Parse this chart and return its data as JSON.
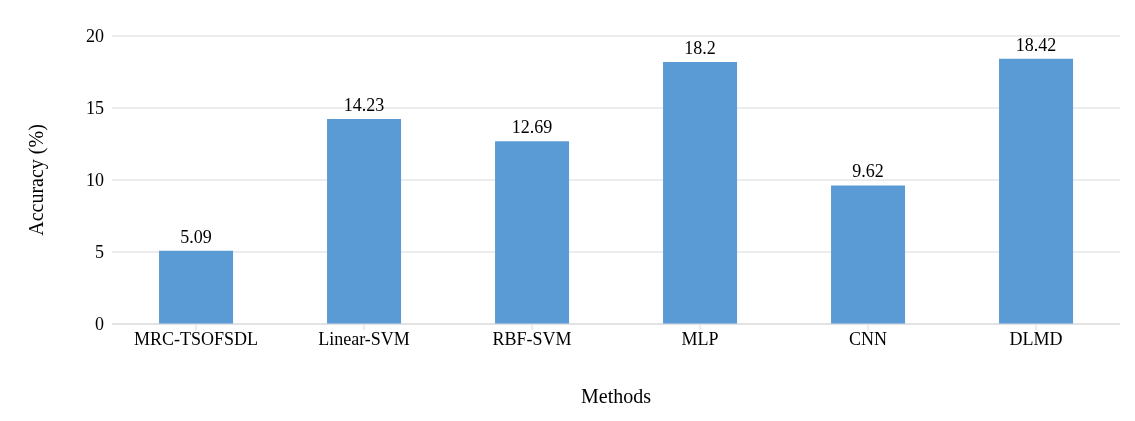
{
  "chart_data": {
    "type": "bar",
    "xlabel": "Methods",
    "ylabel": "Accuracy (%)",
    "categories": [
      "MRC-TSOFSDL",
      "Linear-SVM",
      "RBF-SVM",
      "MLP",
      "CNN",
      "DLMD"
    ],
    "values": [
      5.09,
      14.23,
      12.69,
      18.2,
      9.62,
      18.42
    ],
    "color": "#5b9bd5",
    "ylim": [
      0,
      20
    ],
    "yticks": [
      0,
      5,
      10,
      15,
      20
    ],
    "grid": "y",
    "data_labels": true
  }
}
